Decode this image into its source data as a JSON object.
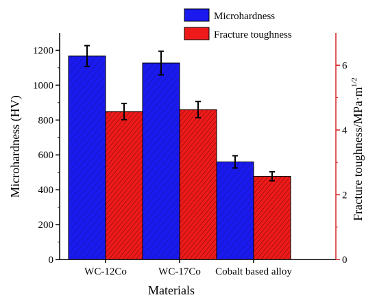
{
  "chart_data": {
    "type": "bar",
    "title": "",
    "xlabel": "Materials",
    "categories": [
      "WC-12Co",
      "WC-17Co",
      "Cobalt based alloy"
    ],
    "left_axis": {
      "label": "Microhardness (HV)",
      "ylim": [
        0,
        1300
      ],
      "ticks": [
        0,
        200,
        400,
        600,
        800,
        1000,
        1200
      ],
      "color": "#000000"
    },
    "right_axis": {
      "label": "Fracture toughness/MPa·m",
      "label_superscript": "1/2",
      "ylim": [
        0,
        7
      ],
      "ticks": [
        0,
        2,
        4,
        6
      ],
      "color": "#d62020"
    },
    "series": [
      {
        "name": "Microhardness",
        "axis": "left",
        "color": "#1a1aee",
        "values": [
          1167,
          1127,
          560
        ],
        "errors": [
          60,
          68,
          35
        ]
      },
      {
        "name": "Fracture toughness",
        "axis": "right",
        "color": "#ee1a1a",
        "values": [
          4.57,
          4.63,
          2.57
        ],
        "errors": [
          0.25,
          0.25,
          0.14
        ]
      }
    ],
    "legend": {
      "placement": "top-right"
    },
    "grid": false
  }
}
